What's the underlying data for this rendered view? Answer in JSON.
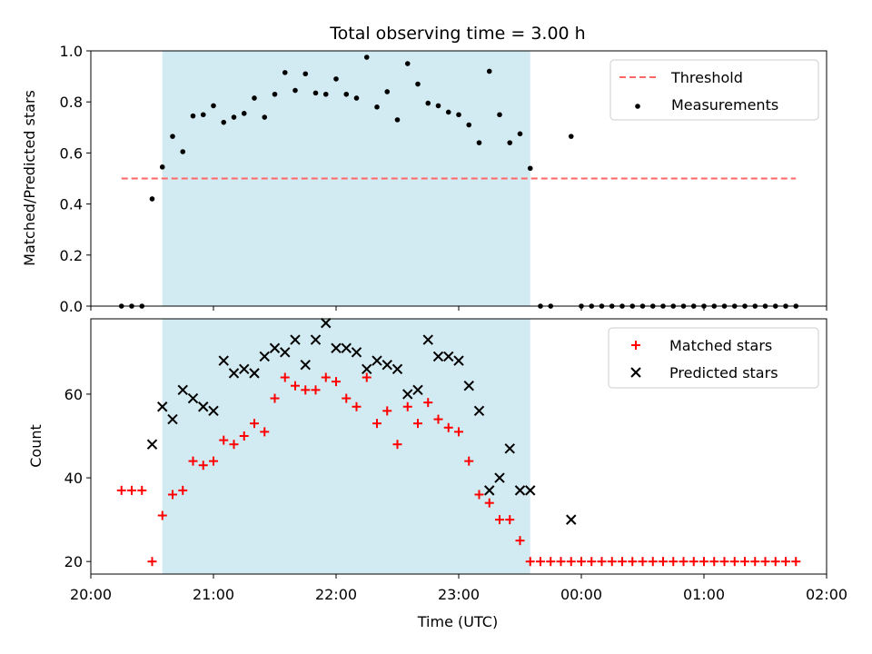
{
  "chart_data": [
    {
      "type": "scatter",
      "title": "Total observing time = 3.00 h",
      "xlabel": "",
      "ylabel": "Matched/Predicted stars",
      "xlim": [
        "20:00",
        "02:00"
      ],
      "ylim": [
        0,
        1.0
      ],
      "yticks": [
        0.0,
        0.2,
        0.4,
        0.6,
        0.8,
        1.0
      ],
      "grid": false,
      "legend_position": "top-right",
      "observing_window": {
        "start": "20:35",
        "end": "23:35",
        "color": "#add8e6"
      },
      "threshold": {
        "name": "Threshold",
        "value": 0.5,
        "x_range": [
          "20:15",
          "01:45"
        ],
        "color": "#ff6666",
        "style": "dashed"
      },
      "series": [
        {
          "name": "Measurements",
          "marker": "dot",
          "color": "#000000",
          "points": [
            [
              "20:15",
              0.0
            ],
            [
              "20:20",
              0.0
            ],
            [
              "20:25",
              0.0
            ],
            [
              "20:30",
              0.42
            ],
            [
              "20:35",
              0.545
            ],
            [
              "20:40",
              0.665
            ],
            [
              "20:45",
              0.605
            ],
            [
              "20:50",
              0.745
            ],
            [
              "20:55",
              0.75
            ],
            [
              "21:00",
              0.785
            ],
            [
              "21:05",
              0.72
            ],
            [
              "21:10",
              0.74
            ],
            [
              "21:15",
              0.755
            ],
            [
              "21:20",
              0.815
            ],
            [
              "21:25",
              0.74
            ],
            [
              "21:30",
              0.83
            ],
            [
              "21:35",
              0.915
            ],
            [
              "21:40",
              0.845
            ],
            [
              "21:45",
              0.91
            ],
            [
              "21:50",
              0.835
            ],
            [
              "21:55",
              0.83
            ],
            [
              "22:00",
              0.89
            ],
            [
              "22:05",
              0.83
            ],
            [
              "22:10",
              0.815
            ],
            [
              "22:15",
              0.975
            ],
            [
              "22:20",
              0.78
            ],
            [
              "22:25",
              0.84
            ],
            [
              "22:30",
              0.73
            ],
            [
              "22:35",
              0.95
            ],
            [
              "22:40",
              0.87
            ],
            [
              "22:45",
              0.795
            ],
            [
              "22:50",
              0.785
            ],
            [
              "22:55",
              0.76
            ],
            [
              "23:00",
              0.75
            ],
            [
              "23:05",
              0.71
            ],
            [
              "23:10",
              0.64
            ],
            [
              "23:15",
              0.92
            ],
            [
              "23:20",
              0.75
            ],
            [
              "23:25",
              0.64
            ],
            [
              "23:30",
              0.675
            ],
            [
              "23:35",
              0.54
            ],
            [
              "23:40",
              0.0
            ],
            [
              "23:45",
              0.0
            ],
            [
              "23:55",
              0.665
            ],
            [
              "00:00",
              0.0
            ],
            [
              "00:05",
              0.0
            ],
            [
              "00:10",
              0.0
            ],
            [
              "00:15",
              0.0
            ],
            [
              "00:20",
              0.0
            ],
            [
              "00:25",
              0.0
            ],
            [
              "00:30",
              0.0
            ],
            [
              "00:35",
              0.0
            ],
            [
              "00:40",
              0.0
            ],
            [
              "00:45",
              0.0
            ],
            [
              "00:50",
              0.0
            ],
            [
              "00:55",
              0.0
            ],
            [
              "01:00",
              0.0
            ],
            [
              "01:05",
              0.0
            ],
            [
              "01:10",
              0.0
            ],
            [
              "01:15",
              0.0
            ],
            [
              "01:20",
              0.0
            ],
            [
              "01:25",
              0.0
            ],
            [
              "01:30",
              0.0
            ],
            [
              "01:35",
              0.0
            ],
            [
              "01:40",
              0.0
            ],
            [
              "01:45",
              0.0
            ]
          ]
        }
      ]
    },
    {
      "type": "scatter",
      "title": "",
      "xlabel": "Time (UTC)",
      "ylabel": "Count",
      "xlim": [
        "20:00",
        "02:00"
      ],
      "xticks": [
        "20:00",
        "21:00",
        "22:00",
        "23:00",
        "00:00",
        "01:00",
        "02:00"
      ],
      "ylim": [
        17,
        78
      ],
      "yticks": [
        20,
        40,
        60
      ],
      "grid": false,
      "legend_position": "top-right",
      "observing_window": {
        "start": "20:35",
        "end": "23:35",
        "color": "#add8e6"
      },
      "series": [
        {
          "name": "Matched stars",
          "marker": "plus",
          "color": "#ff0000",
          "points": [
            [
              "20:15",
              37
            ],
            [
              "20:20",
              37
            ],
            [
              "20:25",
              37
            ],
            [
              "20:30",
              20
            ],
            [
              "20:35",
              31
            ],
            [
              "20:40",
              36
            ],
            [
              "20:45",
              37
            ],
            [
              "20:50",
              44
            ],
            [
              "20:55",
              43
            ],
            [
              "21:00",
              44
            ],
            [
              "21:05",
              49
            ],
            [
              "21:10",
              48
            ],
            [
              "21:15",
              50
            ],
            [
              "21:20",
              53
            ],
            [
              "21:25",
              51
            ],
            [
              "21:30",
              59
            ],
            [
              "21:35",
              64
            ],
            [
              "21:40",
              62
            ],
            [
              "21:45",
              61
            ],
            [
              "21:50",
              61
            ],
            [
              "21:55",
              64
            ],
            [
              "22:00",
              63
            ],
            [
              "22:05",
              59
            ],
            [
              "22:10",
              57
            ],
            [
              "22:15",
              64
            ],
            [
              "22:20",
              53
            ],
            [
              "22:25",
              56
            ],
            [
              "22:30",
              48
            ],
            [
              "22:35",
              57
            ],
            [
              "22:40",
              53
            ],
            [
              "22:45",
              58
            ],
            [
              "22:50",
              54
            ],
            [
              "22:55",
              52
            ],
            [
              "23:00",
              51
            ],
            [
              "23:05",
              44
            ],
            [
              "23:10",
              36
            ],
            [
              "23:15",
              34
            ],
            [
              "23:20",
              30
            ],
            [
              "23:25",
              30
            ],
            [
              "23:30",
              25
            ],
            [
              "23:35",
              20
            ],
            [
              "23:40",
              20
            ],
            [
              "23:45",
              20
            ],
            [
              "23:50",
              20
            ],
            [
              "23:55",
              20
            ],
            [
              "00:00",
              20
            ],
            [
              "00:05",
              20
            ],
            [
              "00:10",
              20
            ],
            [
              "00:15",
              20
            ],
            [
              "00:20",
              20
            ],
            [
              "00:25",
              20
            ],
            [
              "00:30",
              20
            ],
            [
              "00:35",
              20
            ],
            [
              "00:40",
              20
            ],
            [
              "00:45",
              20
            ],
            [
              "00:50",
              20
            ],
            [
              "00:55",
              20
            ],
            [
              "01:00",
              20
            ],
            [
              "01:05",
              20
            ],
            [
              "01:10",
              20
            ],
            [
              "01:15",
              20
            ],
            [
              "01:20",
              20
            ],
            [
              "01:25",
              20
            ],
            [
              "01:30",
              20
            ],
            [
              "01:35",
              20
            ],
            [
              "01:40",
              20
            ],
            [
              "01:45",
              20
            ]
          ]
        },
        {
          "name": "Predicted stars",
          "marker": "x",
          "color": "#000000",
          "points": [
            [
              "20:30",
              48
            ],
            [
              "20:35",
              57
            ],
            [
              "20:40",
              54
            ],
            [
              "20:45",
              61
            ],
            [
              "20:50",
              59
            ],
            [
              "20:55",
              57
            ],
            [
              "21:00",
              56
            ],
            [
              "21:05",
              68
            ],
            [
              "21:10",
              65
            ],
            [
              "21:15",
              66
            ],
            [
              "21:20",
              65
            ],
            [
              "21:25",
              69
            ],
            [
              "21:30",
              71
            ],
            [
              "21:35",
              70
            ],
            [
              "21:40",
              73
            ],
            [
              "21:45",
              67
            ],
            [
              "21:50",
              73
            ],
            [
              "21:55",
              77
            ],
            [
              "22:00",
              71
            ],
            [
              "22:05",
              71
            ],
            [
              "22:10",
              70
            ],
            [
              "22:15",
              66
            ],
            [
              "22:20",
              68
            ],
            [
              "22:25",
              67
            ],
            [
              "22:30",
              66
            ],
            [
              "22:35",
              60
            ],
            [
              "22:40",
              61
            ],
            [
              "22:45",
              73
            ],
            [
              "22:50",
              69
            ],
            [
              "22:55",
              69
            ],
            [
              "23:00",
              68
            ],
            [
              "23:05",
              62
            ],
            [
              "23:10",
              56
            ],
            [
              "23:15",
              37
            ],
            [
              "23:20",
              40
            ],
            [
              "23:25",
              47
            ],
            [
              "23:30",
              37
            ],
            [
              "23:35",
              37
            ],
            [
              "23:55",
              30
            ]
          ]
        }
      ]
    }
  ]
}
